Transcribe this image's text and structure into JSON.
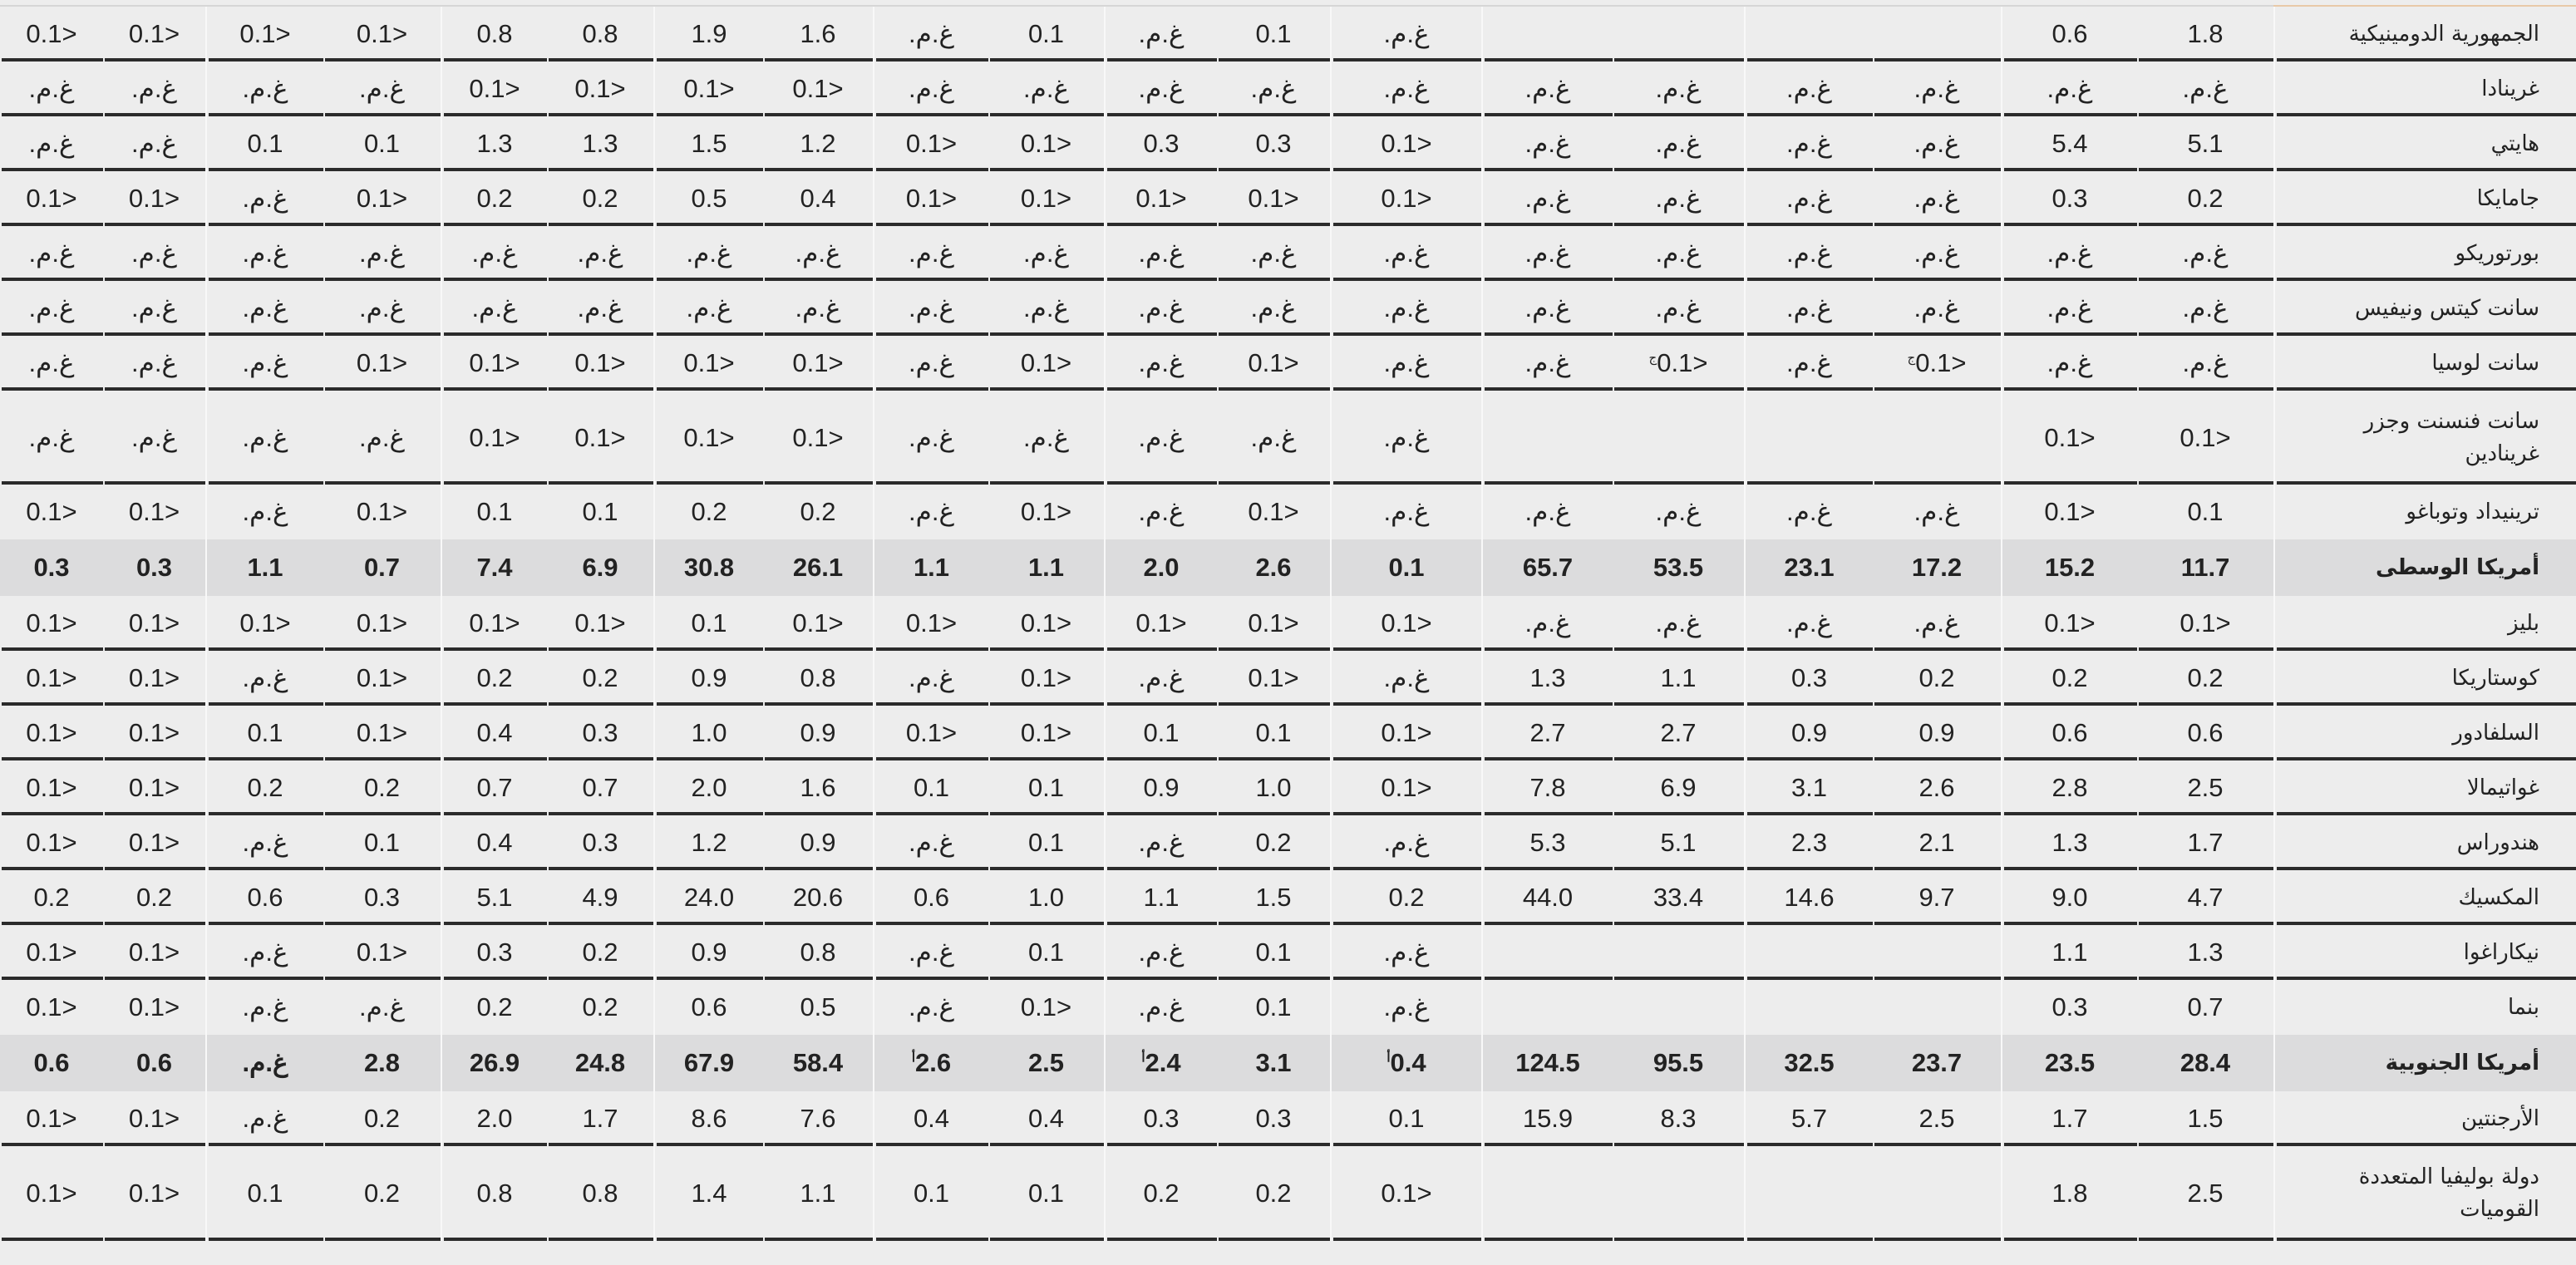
{
  "rows": [
    {
      "name": "الجمهورية الدومينيكية",
      "values": [
        "1.8",
        "0.6",
        "",
        "",
        "",
        "",
        "غ.م.",
        "0.1",
        "غ.م.",
        "0.1",
        "غ.م.",
        "1.6",
        "1.9",
        "0.8",
        "0.8",
        "<0.1",
        "<0.1",
        "<0.1",
        "<0.1"
      ]
    },
    {
      "name": "غرينادا",
      "values": [
        "غ.م.",
        "غ.م.",
        "غ.م.",
        "غ.م.",
        "غ.م.",
        "غ.م.",
        "غ.م.",
        "غ.م.",
        "غ.م.",
        "غ.م.",
        "غ.م.",
        "<0.1",
        "<0.1",
        "<0.1",
        "<0.1",
        "غ.م.",
        "غ.م.",
        "غ.م.",
        "غ.م."
      ]
    },
    {
      "name": "هايتي",
      "values": [
        "5.1",
        "5.4",
        "غ.م.",
        "غ.م.",
        "غ.م.",
        "غ.م.",
        "<0.1",
        "0.3",
        "0.3",
        "<0.1",
        "<0.1",
        "1.2",
        "1.5",
        "1.3",
        "1.3",
        "0.1",
        "0.1",
        "غ.م.",
        "غ.م."
      ]
    },
    {
      "name": "جامايكا",
      "values": [
        "0.2",
        "0.3",
        "غ.م.",
        "غ.م.",
        "غ.م.",
        "غ.م.",
        "<0.1",
        "<0.1",
        "<0.1",
        "<0.1",
        "<0.1",
        "0.4",
        "0.5",
        "0.2",
        "0.2",
        "<0.1",
        "غ.م.",
        "<0.1",
        "<0.1"
      ]
    },
    {
      "name": "بورتوريكو",
      "values": [
        "غ.م.",
        "غ.م.",
        "غ.م.",
        "غ.م.",
        "غ.م.",
        "غ.م.",
        "غ.م.",
        "غ.م.",
        "غ.م.",
        "غ.م.",
        "غ.م.",
        "غ.م.",
        "غ.م.",
        "غ.م.",
        "غ.م.",
        "غ.م.",
        "غ.م.",
        "غ.م.",
        "غ.م."
      ]
    },
    {
      "name": "سانت كيتس ونيفيس",
      "values": [
        "غ.م.",
        "غ.م.",
        "غ.م.",
        "غ.م.",
        "غ.م.",
        "غ.م.",
        "غ.م.",
        "غ.م.",
        "غ.م.",
        "غ.م.",
        "غ.م.",
        "غ.م.",
        "غ.م.",
        "غ.م.",
        "غ.م.",
        "غ.م.",
        "غ.م.",
        "غ.م.",
        "غ.م."
      ]
    },
    {
      "name": "سانت لوسيا",
      "values": [
        "غ.م.",
        "غ.م.",
        "<0.1",
        "غ.م.",
        "<0.1",
        "غ.م.",
        "غ.م.",
        "<0.1",
        "غ.م.",
        "<0.1",
        "غ.م.",
        "<0.1",
        "<0.1",
        "<0.1",
        "<0.1",
        "<0.1",
        "غ.م.",
        "غ.م.",
        "غ.م."
      ],
      "notes": {
        "2": "ج",
        "4": "ج"
      }
    },
    {
      "name": "سانت فنسنت وجزر غرينادين",
      "values": [
        "<0.1",
        "<0.1",
        "",
        "",
        "",
        "",
        "غ.م.",
        "غ.م.",
        "غ.م.",
        "غ.م.",
        "غ.م.",
        "<0.1",
        "<0.1",
        "<0.1",
        "<0.1",
        "غ.م.",
        "غ.م.",
        "غ.م.",
        "غ.م."
      ]
    },
    {
      "name": "ترينيداد وتوباغو",
      "values": [
        "0.1",
        "<0.1",
        "غ.م.",
        "غ.م.",
        "غ.م.",
        "غ.م.",
        "غ.م.",
        "<0.1",
        "غ.م.",
        "<0.1",
        "غ.م.",
        "0.2",
        "0.2",
        "0.1",
        "0.1",
        "<0.1",
        "غ.م.",
        "<0.1",
        "<0.1"
      ]
    },
    {
      "name": "أمريكا الوسطى",
      "type": "region",
      "values": [
        "11.7",
        "15.2",
        "17.2",
        "23.1",
        "53.5",
        "65.7",
        "0.1",
        "2.6",
        "2.0",
        "1.1",
        "1.1",
        "26.1",
        "30.8",
        "6.9",
        "7.4",
        "0.7",
        "1.1",
        "0.3",
        "0.3"
      ]
    },
    {
      "name": "بليز",
      "values": [
        "<0.1",
        "<0.1",
        "غ.م.",
        "غ.م.",
        "غ.م.",
        "غ.م.",
        "<0.1",
        "<0.1",
        "<0.1",
        "<0.1",
        "<0.1",
        "<0.1",
        "0.1",
        "<0.1",
        "<0.1",
        "<0.1",
        "<0.1",
        "<0.1",
        "<0.1"
      ]
    },
    {
      "name": "كوستاريكا",
      "values": [
        "0.2",
        "0.2",
        "0.2",
        "0.3",
        "1.1",
        "1.3",
        "غ.م.",
        "<0.1",
        "غ.م.",
        "<0.1",
        "غ.م.",
        "0.8",
        "0.9",
        "0.2",
        "0.2",
        "<0.1",
        "غ.م.",
        "<0.1",
        "<0.1"
      ]
    },
    {
      "name": "السلفادور",
      "values": [
        "0.6",
        "0.6",
        "0.9",
        "0.9",
        "2.7",
        "2.7",
        "<0.1",
        "0.1",
        "0.1",
        "<0.1",
        "<0.1",
        "0.9",
        "1.0",
        "0.3",
        "0.4",
        "<0.1",
        "0.1",
        "<0.1",
        "<0.1"
      ]
    },
    {
      "name": "غواتيمالا",
      "values": [
        "2.5",
        "2.8",
        "2.6",
        "3.1",
        "6.9",
        "7.8",
        "<0.1",
        "1.0",
        "0.9",
        "0.1",
        "0.1",
        "1.6",
        "2.0",
        "0.7",
        "0.7",
        "0.2",
        "0.2",
        "<0.1",
        "<0.1"
      ]
    },
    {
      "name": "هندوراس",
      "values": [
        "1.7",
        "1.3",
        "2.1",
        "2.3",
        "5.1",
        "5.3",
        "غ.م.",
        "0.2",
        "غ.م.",
        "0.1",
        "غ.م.",
        "0.9",
        "1.2",
        "0.3",
        "0.4",
        "0.1",
        "غ.م.",
        "<0.1",
        "<0.1"
      ]
    },
    {
      "name": "المكسيك",
      "values": [
        "4.7",
        "9.0",
        "9.7",
        "14.6",
        "33.4",
        "44.0",
        "0.2",
        "1.5",
        "1.1",
        "1.0",
        "0.6",
        "20.6",
        "24.0",
        "4.9",
        "5.1",
        "0.3",
        "0.6",
        "0.2",
        "0.2"
      ]
    },
    {
      "name": "نيكاراغوا",
      "values": [
        "1.3",
        "1.1",
        "",
        "",
        "",
        "",
        "غ.م.",
        "0.1",
        "غ.م.",
        "0.1",
        "غ.م.",
        "0.8",
        "0.9",
        "0.2",
        "0.3",
        "<0.1",
        "غ.م.",
        "<0.1",
        "<0.1"
      ]
    },
    {
      "name": "بنما",
      "values": [
        "0.7",
        "0.3",
        "",
        "",
        "",
        "",
        "غ.م.",
        "0.1",
        "غ.م.",
        "<0.1",
        "غ.م.",
        "0.5",
        "0.6",
        "0.2",
        "0.2",
        "غ.م.",
        "غ.م.",
        "<0.1",
        "<0.1"
      ]
    },
    {
      "name": "أمريكا الجنوبية",
      "type": "region",
      "values": [
        "28.4",
        "23.5",
        "23.7",
        "32.5",
        "95.5",
        "124.5",
        "0.4",
        "3.1",
        "2.4",
        "2.5",
        "2.6",
        "58.4",
        "67.9",
        "24.8",
        "26.9",
        "2.8",
        "غ.م.",
        "0.6",
        "0.6"
      ],
      "notes": {
        "6": "أ",
        "8": "أ",
        "10": "أ"
      }
    },
    {
      "name": "الأرجنتين",
      "values": [
        "1.5",
        "1.7",
        "2.5",
        "5.7",
        "8.3",
        "15.9",
        "0.1",
        "0.3",
        "0.3",
        "0.4",
        "0.4",
        "7.6",
        "8.6",
        "1.7",
        "2.0",
        "0.2",
        "غ.م.",
        "<0.1",
        "<0.1"
      ]
    },
    {
      "name": "دولة بوليفيا المتعددة القوميات",
      "values": [
        "2.5",
        "1.8",
        "",
        "",
        "",
        "",
        "<0.1",
        "0.2",
        "0.2",
        "0.1",
        "0.1",
        "1.1",
        "1.4",
        "0.8",
        "0.8",
        "0.2",
        "0.1",
        "<0.1",
        "<0.1"
      ]
    }
  ]
}
